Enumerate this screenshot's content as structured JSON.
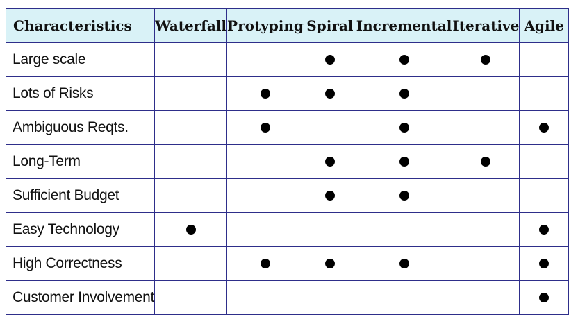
{
  "table": {
    "columns": [
      "Characteristics",
      "Waterfall",
      "Protyping",
      "Spiral",
      "Incremental",
      "Iterative",
      "Agile"
    ],
    "rows": [
      {
        "label": "Large scale",
        "marks": [
          false,
          false,
          true,
          true,
          true,
          false
        ]
      },
      {
        "label": "Lots of Risks",
        "marks": [
          false,
          true,
          true,
          true,
          false,
          false
        ]
      },
      {
        "label": "Ambiguous Reqts.",
        "marks": [
          false,
          true,
          false,
          true,
          false,
          true
        ]
      },
      {
        "label": "Long-Term",
        "marks": [
          false,
          false,
          true,
          true,
          true,
          false
        ]
      },
      {
        "label": "Sufficient Budget",
        "marks": [
          false,
          false,
          true,
          true,
          false,
          false
        ]
      },
      {
        "label": "Easy Technology",
        "marks": [
          true,
          false,
          false,
          false,
          false,
          true
        ]
      },
      {
        "label": "High Correctness",
        "marks": [
          false,
          true,
          true,
          true,
          false,
          true
        ]
      },
      {
        "label": "Customer Involvement",
        "marks": [
          false,
          false,
          false,
          false,
          false,
          true
        ]
      }
    ]
  },
  "colors": {
    "header_bg": "#d9f2f7",
    "border": "#2e2e8a",
    "dot": "#000000"
  },
  "icons": {
    "mark": "filled-circle-icon"
  }
}
